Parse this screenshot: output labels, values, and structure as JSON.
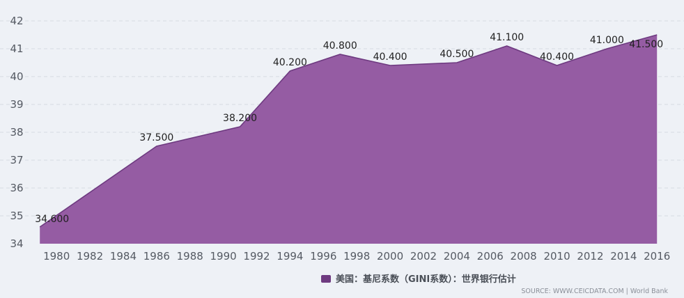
{
  "chart_data": {
    "type": "area",
    "title": "",
    "xlabel": "",
    "ylabel": "",
    "x_ticks": [
      "1980",
      "1982",
      "1984",
      "1986",
      "1988",
      "1990",
      "1992",
      "1994",
      "1996",
      "1998",
      "2000",
      "2002",
      "2004",
      "2006",
      "2008",
      "2010",
      "2012",
      "2014",
      "2016"
    ],
    "y_ticks": [
      "34",
      "35",
      "36",
      "37",
      "38",
      "39",
      "40",
      "41",
      "42"
    ],
    "xlim": [
      1979.2,
      2016.2
    ],
    "ylim": [
      34,
      42
    ],
    "grid": true,
    "legend_position": "bottom-right",
    "series": [
      {
        "name": "美国：基尼系数（GINI系数）：世界银行估计",
        "color": "#955ca3",
        "stroke": "#6e3a80",
        "points": [
          {
            "x": 1979,
            "y": 34.6,
            "label": "34.600"
          },
          {
            "x": 1986,
            "y": 37.5,
            "label": "37.500"
          },
          {
            "x": 1991,
            "y": 38.2,
            "label": "38.200"
          },
          {
            "x": 1994,
            "y": 40.2,
            "label": "40.200"
          },
          {
            "x": 1997,
            "y": 40.8,
            "label": "40.800"
          },
          {
            "x": 2000,
            "y": 40.4,
            "label": "40.400"
          },
          {
            "x": 2004,
            "y": 40.5,
            "label": "40.500"
          },
          {
            "x": 2007,
            "y": 41.1,
            "label": "41.100"
          },
          {
            "x": 2010,
            "y": 40.4,
            "label": "40.400"
          },
          {
            "x": 2013,
            "y": 41.0,
            "label": "41.000"
          },
          {
            "x": 2016,
            "y": 41.5,
            "label": "41.500"
          }
        ]
      }
    ]
  },
  "source": "SOURCE: WWW.CEICDATA.COM | World Bank"
}
